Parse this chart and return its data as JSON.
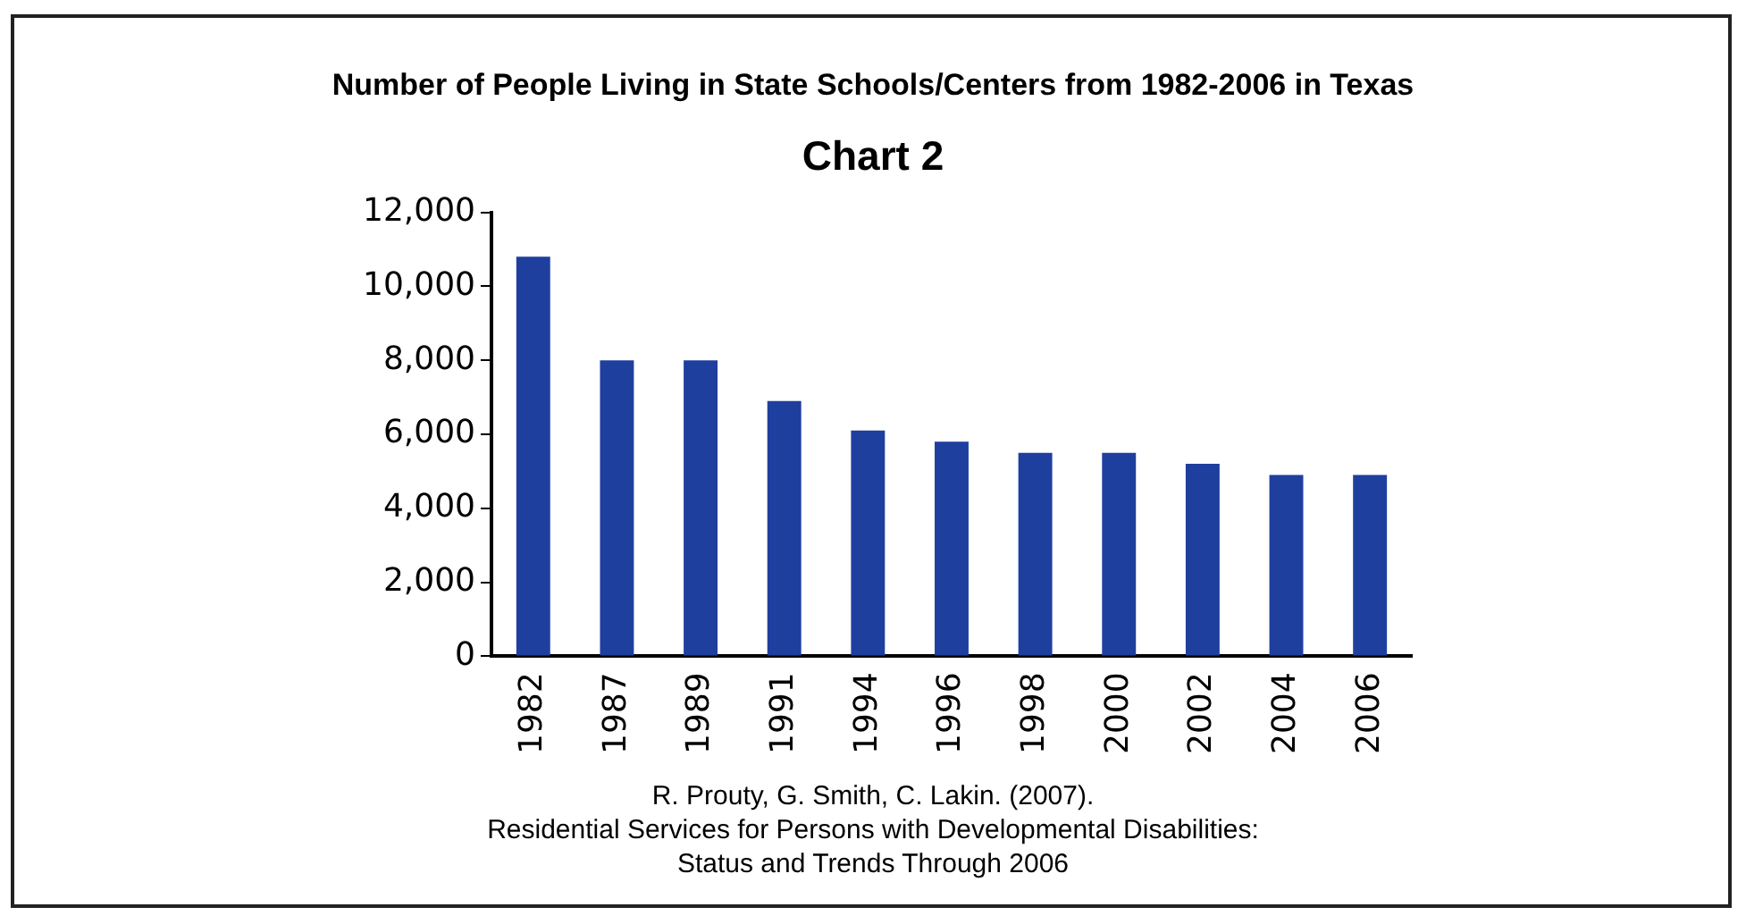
{
  "chart_data": {
    "type": "bar",
    "title": "Number of People Living in State Schools/Centers from 1982-2006 in Texas",
    "subtitle": "Chart 2",
    "categories": [
      "1982",
      "1987",
      "1989",
      "1991",
      "1994",
      "1996",
      "1998",
      "2000",
      "2002",
      "2004",
      "2006"
    ],
    "values": [
      10800,
      8000,
      8000,
      6900,
      6100,
      5800,
      5500,
      5500,
      5200,
      4900,
      4900
    ],
    "color": "#1f3f9f",
    "ylim": [
      0,
      12000
    ],
    "yticks": [
      {
        "value": 0,
        "label": "0"
      },
      {
        "value": 2000,
        "label": "2,000"
      },
      {
        "value": 4000,
        "label": "4,000"
      },
      {
        "value": 6000,
        "label": "6,000"
      },
      {
        "value": 8000,
        "label": "8,000"
      },
      {
        "value": 10000,
        "label": "10,000"
      },
      {
        "value": 12000,
        "label": "12,000"
      }
    ],
    "grid": false,
    "legend": false,
    "annotations": [
      "R. Prouty, G. Smith, C. Lakin. (2007).",
      "Residential Services for Persons with Developmental Disabilities:",
      "Status and Trends Through 2006"
    ]
  }
}
